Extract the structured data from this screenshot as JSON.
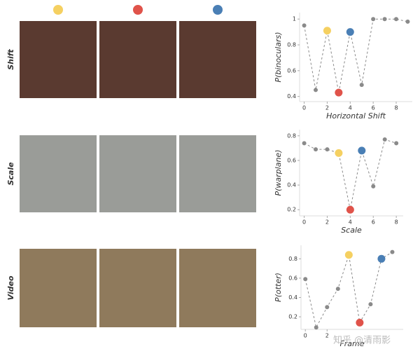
{
  "frame_colors": [
    "#f5d061",
    "#e0534a",
    "#4a7fb5"
  ],
  "row_labels": [
    "Shift",
    "Scale",
    "Video"
  ],
  "watermark": "知乎 @清雨影",
  "chart_data": [
    {
      "type": "line",
      "y_label": "P(binoculars)",
      "x_label": "Horizontal Shift",
      "x": [
        0,
        1,
        2,
        3,
        4,
        5,
        6,
        7,
        8,
        9
      ],
      "values": [
        0.95,
        0.45,
        0.91,
        0.43,
        0.9,
        0.49,
        1.0,
        1.0,
        1.0,
        0.98
      ],
      "color": "#8a8a8a",
      "point_colors": [
        "#8a8a8a",
        "#8a8a8a",
        "#f5d061",
        "#e0534a",
        "#4a7fb5",
        "#8a8a8a",
        "#8a8a8a",
        "#8a8a8a",
        "#8a8a8a",
        "#8a8a8a"
      ],
      "xlim": [
        -0.4,
        9.4
      ],
      "ylim": [
        0.36,
        1.05
      ],
      "xticks": [
        0,
        2,
        4,
        6,
        8
      ],
      "yticks": [
        0.4,
        0.6,
        0.8,
        1.0
      ]
    },
    {
      "type": "line",
      "y_label": "P(warplane)",
      "x_label": "Scale",
      "x": [
        0,
        1,
        2,
        3,
        4,
        5,
        6,
        7,
        8
      ],
      "values": [
        0.74,
        0.69,
        0.69,
        0.66,
        0.2,
        0.68,
        0.39,
        0.77,
        0.74
      ],
      "color": "#8a8a8a",
      "point_colors": [
        "#8a8a8a",
        "#8a8a8a",
        "#8a8a8a",
        "#f5d061",
        "#e0534a",
        "#4a7fb5",
        "#8a8a8a",
        "#8a8a8a",
        "#8a8a8a"
      ],
      "xlim": [
        -0.4,
        8.6
      ],
      "ylim": [
        0.15,
        0.85
      ],
      "xticks": [
        0,
        2,
        4,
        6,
        8
      ],
      "yticks": [
        0.2,
        0.4,
        0.6,
        0.8
      ]
    },
    {
      "type": "line",
      "y_label": "P(otter)",
      "x_label": "Frame",
      "x": [
        0,
        1,
        2,
        3,
        4,
        5,
        6,
        7,
        8
      ],
      "values": [
        0.59,
        0.09,
        0.3,
        0.49,
        0.84,
        0.14,
        0.33,
        0.8,
        0.87
      ],
      "color": "#8a8a8a",
      "point_colors": [
        "#8a8a8a",
        "#8a8a8a",
        "#8a8a8a",
        "#8a8a8a",
        "#f5d061",
        "#e0534a",
        "#8a8a8a",
        "#4a7fb5",
        "#8a8a8a"
      ],
      "xlim": [
        -0.4,
        9.0
      ],
      "ylim": [
        0.07,
        0.94
      ],
      "xticks": [
        0,
        2
      ],
      "yticks": [
        0.2,
        0.4,
        0.6,
        0.8
      ]
    }
  ]
}
